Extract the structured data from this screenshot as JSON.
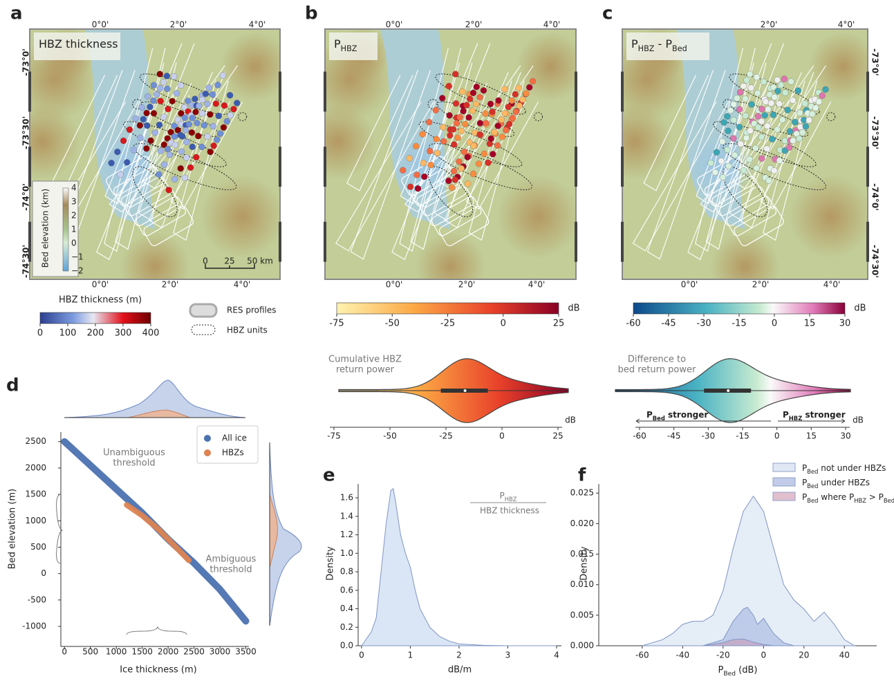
{
  "panel_labels": [
    "a",
    "b",
    "c",
    "d",
    "e",
    "f"
  ],
  "maps": [
    {
      "title": [
        "HBZ thickness"
      ],
      "top_lon": [
        "0°0'",
        "2°0'",
        "4°0'"
      ],
      "bottom_lon": [
        "0°0'",
        "2°0'",
        "4°0'"
      ],
      "lat": [
        "-73°0'",
        "-73°30'",
        "-74°0'",
        "-74°30'"
      ],
      "inset": {
        "label": "Bed elevation (km)",
        "ticks": [
          "4",
          "3",
          "2",
          "1",
          "0",
          "−1",
          "−2"
        ]
      },
      "scale_bar": [
        "0",
        "25",
        "50 km"
      ],
      "colorbar": {
        "label": "HBZ thickness (m)",
        "ticks": [
          0,
          100,
          200,
          300,
          400
        ]
      }
    },
    {
      "title": [
        "P",
        "HBZ"
      ],
      "top_lon": [
        "0°0'",
        "2°0'",
        "4°0'"
      ],
      "bottom_lon": [
        "0°0'",
        "2°0'",
        "4°0'"
      ],
      "colorbar": {
        "unit": "dB",
        "ticks": [
          -75,
          -50,
          -25,
          0,
          25
        ]
      }
    },
    {
      "title": [
        "P",
        "HBZ",
        " - P",
        "Bed"
      ],
      "top_lon": [
        "2°0'",
        "4°0'"
      ],
      "bottom_lon": [
        "0°0'",
        "2°0'",
        "4°0'"
      ],
      "lat": [
        "-73°0'",
        "-73°30'",
        "-74°0'",
        "-74°30'"
      ],
      "colorbar": {
        "unit": "dB",
        "ticks": [
          -60,
          -45,
          -30,
          -15,
          0,
          15,
          30
        ]
      }
    }
  ],
  "legend": {
    "items": [
      "RES profiles",
      "HBZ units"
    ]
  },
  "violins": [
    {
      "label": [
        "Cumulative HBZ",
        "return power"
      ],
      "unit": "dB",
      "ticks": [
        -75,
        -50,
        -25,
        0,
        25
      ]
    },
    {
      "label": [
        "Difference to",
        "bed return power"
      ],
      "unit": "dB",
      "ticks": [
        -60,
        -45,
        -30,
        -15,
        0,
        15,
        30
      ],
      "arrows": [
        [
          "P",
          "Bed",
          " stronger"
        ],
        [
          "P",
          "HBZ",
          " stronger"
        ]
      ]
    }
  ],
  "chart_data": [
    {
      "type": "scatter",
      "x_label": "Ice thickness (m)",
      "y_label": "Bed elevation (m)",
      "annotations": [
        [
          "Unambiguous",
          "threshold"
        ],
        [
          "Ambiguous",
          "threshold"
        ]
      ],
      "xlim": [
        -70,
        3560
      ],
      "ylim": [
        -1380,
        2680
      ],
      "xticks": [
        0,
        500,
        1000,
        1500,
        2000,
        2500,
        3000,
        3500
      ],
      "yticks": [
        -1000,
        -500,
        0,
        500,
        1000,
        1500,
        2000,
        2500
      ],
      "series": [
        {
          "name": "All ice",
          "color": "#4c72b0",
          "x": [
            0,
            500,
            1000,
            1500,
            2000,
            2500,
            3000,
            3500
          ],
          "values": [
            2500,
            2050,
            1600,
            1150,
            650,
            200,
            -300,
            -900
          ]
        },
        {
          "name": "HBZs",
          "color": "#dd8452",
          "x": [
            1200,
            1500,
            1800,
            2100,
            2400
          ],
          "values": [
            1300,
            1100,
            850,
            550,
            250
          ]
        }
      ]
    },
    {
      "type": "area",
      "x_label": "dB/m",
      "y_label": "Density",
      "annotation": {
        "numerator": [
          "P",
          "HBZ"
        ],
        "denominator": "HBZ thickness"
      },
      "xlim": [
        -0.07,
        4.1
      ],
      "ylim": [
        0,
        1.75
      ],
      "xticks": [
        0,
        1,
        2,
        3,
        4
      ],
      "yticks": [
        {
          "value": 0,
          "label": "0.0"
        },
        0.2,
        0.4,
        0.6,
        0.8,
        {
          "value": 1,
          "label": "1.0"
        },
        1.2,
        1.4,
        1.6
      ],
      "series": [
        {
          "color": "#aec7e8",
          "x": [
            0,
            0.2,
            0.3,
            0.4,
            0.5,
            0.6,
            0.65,
            0.7,
            0.8,
            0.9,
            1.0,
            1.1,
            1.2,
            1.4,
            1.6,
            1.8,
            2.0,
            2.5,
            3,
            4
          ],
          "values": [
            0,
            0.15,
            0.3,
            0.8,
            1.3,
            1.68,
            1.7,
            1.55,
            1.2,
            1.0,
            0.85,
            0.6,
            0.4,
            0.2,
            0.1,
            0.05,
            0.02,
            0.005,
            0,
            0
          ]
        }
      ]
    },
    {
      "type": "area",
      "x_label": [
        "P",
        "Bed",
        " (dB)"
      ],
      "y_label": "Density",
      "xlim": [
        -81.5,
        56
      ],
      "ylim": [
        0,
        0.0265
      ],
      "xticks": [
        -60,
        -40,
        -20,
        0,
        20,
        40
      ],
      "yticks": [
        {
          "value": 0,
          "label": "0.000"
        },
        0.005,
        {
          "value": 0.01,
          "label": "0.010"
        },
        0.015,
        {
          "value": 0.02,
          "label": "0.020"
        },
        0.025
      ],
      "series": [
        {
          "name": [
            "P",
            "Bed",
            " not under HBZs"
          ],
          "color": "#c6d6ee",
          "x": [
            -60,
            -50,
            -45,
            -40,
            -35,
            -30,
            -25,
            -20,
            -15,
            -10,
            -5,
            0,
            5,
            10,
            15,
            20,
            25,
            30,
            35,
            40,
            45
          ],
          "values": [
            0,
            0.001,
            0.002,
            0.0035,
            0.004,
            0.004,
            0.005,
            0.009,
            0.016,
            0.022,
            0.0245,
            0.022,
            0.016,
            0.01,
            0.0075,
            0.006,
            0.004,
            0.0055,
            0.0035,
            0.001,
            0
          ]
        },
        {
          "name": [
            "P",
            "Bed",
            " under HBZs"
          ],
          "color": "#8fa3d6",
          "x": [
            -30,
            -20,
            -15,
            -10,
            -8,
            -5,
            -3,
            0,
            3,
            5,
            10,
            15
          ],
          "values": [
            0,
            0.001,
            0.004,
            0.006,
            0.0063,
            0.005,
            0.0035,
            0.0045,
            0.003,
            0.002,
            0.0005,
            0
          ]
        },
        {
          "name": [
            "P",
            "Bed",
            " where P",
            "HBZ",
            " > P",
            "Bed"
          ],
          "color": "#c98aa6",
          "x": [
            -30,
            -20,
            -15,
            -10,
            -5,
            0,
            5
          ],
          "values": [
            0,
            0.0005,
            0.001,
            0.0011,
            0.0006,
            0.0002,
            0
          ]
        }
      ]
    }
  ]
}
